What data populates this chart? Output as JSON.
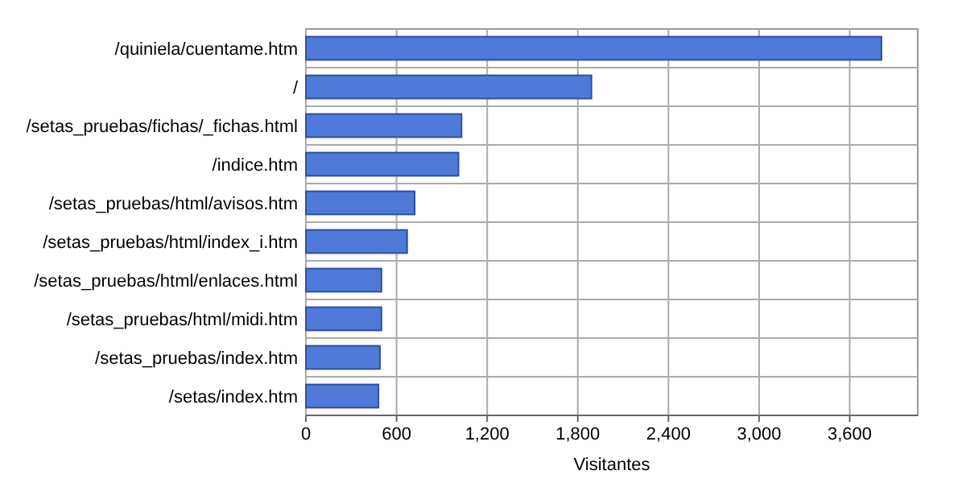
{
  "chart_data": {
    "type": "bar",
    "orientation": "horizontal",
    "xlabel": "Visitantes",
    "categories": [
      "/quiniela/cuentame.htm",
      "/",
      "/setas_pruebas/fichas/_fichas.html",
      "/indice.htm",
      "/setas_pruebas/html/avisos.htm",
      "/setas_pruebas/html/index_i.htm",
      "/setas_pruebas/html/enlaces.html",
      "/setas_pruebas/html/midi.htm",
      "/setas_pruebas/index.htm",
      "/setas/index.htm"
    ],
    "values": [
      3810,
      1890,
      1030,
      1010,
      720,
      670,
      500,
      500,
      490,
      480
    ],
    "color": "#4f7ad9",
    "xlim": [
      0,
      4050
    ],
    "xticks": [
      0,
      600,
      {
        "value": 1200,
        "label": "1,200"
      },
      {
        "value": 1800,
        "label": "1,800"
      },
      {
        "value": 2400,
        "label": "2,400"
      },
      {
        "value": 3000,
        "label": "3,000"
      },
      {
        "value": 3600,
        "label": "3,600"
      }
    ],
    "grid": true
  }
}
